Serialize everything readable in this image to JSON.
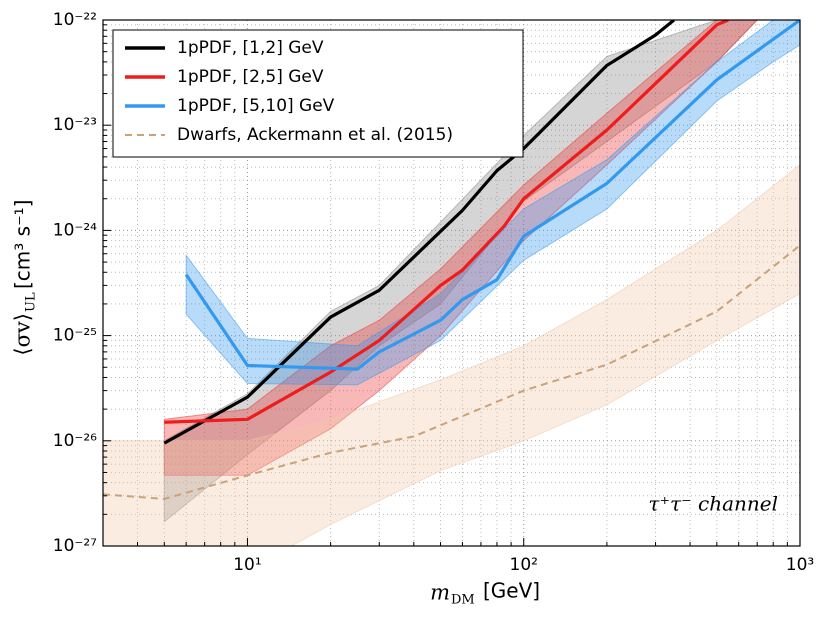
{
  "chart_data": {
    "type": "line",
    "log_x": true,
    "log_y": true,
    "grid": true,
    "minor_grid": true,
    "legend_position": "upper-left",
    "xlabel": {
      "symbol": "m",
      "subscript": "DM",
      "unit": "[GeV]"
    },
    "ylabel": {
      "symbol": "⟨σv⟩",
      "subscript": "UL",
      "unit": "[cm³ s⁻¹]"
    },
    "annotation": "τ⁺τ⁻  channel",
    "xlim": [
      3,
      1000
    ],
    "xticks": [
      {
        "value": 10,
        "label": "10¹"
      },
      {
        "value": 100,
        "label": "10²"
      },
      {
        "value": 1000,
        "label": "10³"
      }
    ],
    "ylim": [
      1e-27,
      1e-22
    ],
    "yticks": [
      {
        "value": 1e-27,
        "label": "10⁻²⁷"
      },
      {
        "value": 1e-26,
        "label": "10⁻²⁶"
      },
      {
        "value": 1e-25,
        "label": "10⁻²⁵"
      },
      {
        "value": 1e-24,
        "label": "10⁻²⁴"
      },
      {
        "value": 1e-23,
        "label": "10⁻²³"
      },
      {
        "value": 1e-22,
        "label": "10⁻²²"
      }
    ],
    "series": [
      {
        "name": "1pPDF, [1,2] GeV",
        "color": "#000000",
        "style": "solid",
        "x": [
          5,
          10,
          20,
          30,
          60,
          80,
          100,
          200,
          300,
          350
        ],
        "values": [
          9.5e-27,
          2.6e-26,
          1.5e-25,
          2.7e-25,
          1.55e-24,
          3.7e-24,
          6e-24,
          3.7e-23,
          7.2e-23,
          1e-22
        ],
        "band": {
          "color": "#888888",
          "x": [
            5,
            10,
            20,
            30,
            50,
            100,
            200,
            500,
            700
          ],
          "lower": [
            1.7e-27,
            7.4e-27,
            3e-26,
            8e-26,
            2e-25,
            1.9e-24,
            7e-24,
            4e-23,
            1e-22
          ],
          "upper": [
            1e-26,
            2.8e-26,
            1.7e-25,
            3e-25,
            1.2e-24,
            8e-24,
            4.5e-23,
            1e-22,
            1e-22
          ]
        }
      },
      {
        "name": "1pPDF, [2,5] GeV",
        "color": "#ee1c1c",
        "style": "solid",
        "x": [
          5,
          10,
          20,
          30,
          50,
          60,
          85,
          100,
          200,
          500,
          550
        ],
        "values": [
          1.5e-26,
          1.6e-26,
          4.5e-26,
          9e-26,
          3e-25,
          4.2e-25,
          1.1e-24,
          2e-24,
          9e-24,
          9e-23,
          1e-22
        ],
        "band": {
          "color": "#ee3333",
          "x": [
            5,
            10,
            20,
            30,
            50,
            100,
            200,
            500,
            700
          ],
          "lower": [
            4.7e-27,
            4.7e-27,
            1.3e-26,
            3e-26,
            1e-25,
            8e-25,
            4.2e-24,
            4e-23,
            1e-22
          ],
          "upper": [
            1.6e-26,
            2e-26,
            8e-26,
            1.4e-25,
            4.3e-25,
            2.7e-24,
            1.3e-23,
            1e-22,
            1e-22
          ]
        }
      },
      {
        "name": "1pPDF, [5,10] GeV",
        "color": "#3399ee",
        "style": "solid",
        "x": [
          6,
          10,
          25,
          30,
          50,
          60,
          80,
          100,
          200,
          500,
          1000
        ],
        "values": [
          3.8e-25,
          5.2e-26,
          4.8e-26,
          7e-26,
          1.4e-25,
          2.2e-25,
          3.4e-25,
          8.8e-25,
          2.8e-24,
          2.7e-23,
          1e-22
        ],
        "band": {
          "color": "#3399ee",
          "x": [
            6,
            10,
            25,
            50,
            100,
            200,
            500,
            800,
            1000
          ],
          "lower": [
            1.6e-25,
            3.5e-26,
            3.4e-26,
            9e-26,
            5.2e-25,
            1.6e-24,
            1.7e-23,
            4e-23,
            5.8e-23
          ],
          "upper": [
            5.8e-25,
            9.4e-26,
            8e-26,
            2.5e-25,
            1.6e-24,
            4.7e-24,
            4e-23,
            1e-22,
            1e-22
          ]
        }
      },
      {
        "name": "Dwarfs, Ackermann et al. (2015)",
        "color": "#c8a27a",
        "style": "dashed",
        "x": [
          3,
          5,
          10,
          20,
          40,
          100,
          200,
          500,
          1000
        ],
        "values": [
          3.1e-27,
          2.8e-27,
          4.7e-27,
          7.7e-27,
          1.1e-26,
          3e-26,
          5.3e-26,
          1.7e-25,
          7.2e-25
        ],
        "band": {
          "color": "#f0c8a8",
          "x": [
            3,
            10,
            20,
            50,
            100,
            200,
            500,
            1000
          ],
          "lower": [
            3e-28,
            5.9e-28,
            1.6e-27,
            5.2e-27,
            1e-26,
            2.2e-26,
            9e-26,
            2.5e-25
          ],
          "upper": [
            1e-26,
            1e-26,
            1.6e-26,
            3.8e-26,
            8e-26,
            2.2e-25,
            1e-24,
            4.2e-24
          ]
        }
      }
    ]
  }
}
